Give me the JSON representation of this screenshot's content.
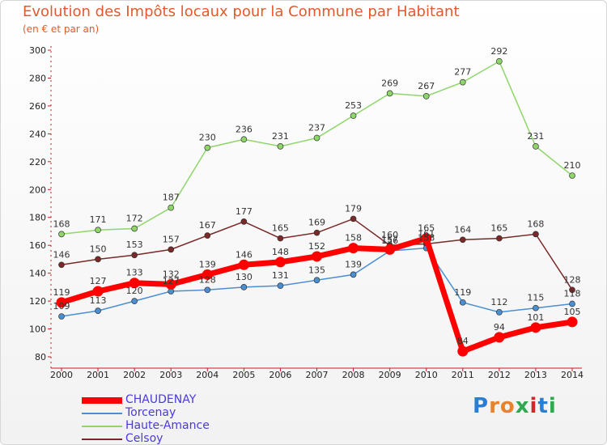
{
  "title": "Evolution des Impôts locaux pour la Commune par Habitant",
  "subtitle": "(en € et par an)",
  "logo": {
    "text": "Proxiti",
    "colors": [
      "#2a7fd4",
      "#e8832a",
      "#e8832a",
      "#2fa84f",
      "#d4252b",
      "#2a7fd4",
      "#2fa84f"
    ]
  },
  "chart_data": {
    "type": "line",
    "title": "Evolution des Impôts locaux pour la Commune par Habitant",
    "subtitle": "(en € et par an)",
    "xlabel": "",
    "ylabel": "",
    "categories": [
      "2000",
      "2001",
      "2002",
      "2003",
      "2004",
      "2005",
      "2006",
      "2007",
      "2008",
      "2009",
      "2010",
      "2011",
      "2012",
      "2013",
      "2014"
    ],
    "ylim": [
      80,
      300
    ],
    "yticks": [
      80,
      100,
      120,
      140,
      160,
      180,
      200,
      220,
      240,
      260,
      280,
      300
    ],
    "grid": false,
    "legend_position": "bottom-left",
    "series": [
      {
        "name": "Celsoy",
        "color": "#7a2828",
        "emphasis": false,
        "values": [
          146,
          150,
          153,
          157,
          167,
          177,
          165,
          169,
          179,
          160,
          161,
          164,
          165,
          168,
          128
        ]
      },
      {
        "name": "Haute-Amance",
        "color": "#8ed66a",
        "emphasis": false,
        "values": [
          168,
          171,
          172,
          187,
          230,
          236,
          231,
          237,
          253,
          269,
          267,
          277,
          292,
          231,
          210
        ]
      },
      {
        "name": "Torcenay",
        "color": "#4b8fd1",
        "emphasis": false,
        "values": [
          109,
          113,
          120,
          127,
          128,
          130,
          131,
          135,
          139,
          156,
          158,
          119,
          112,
          115,
          118
        ]
      },
      {
        "name": "CHAUDENAY",
        "color": "#ff0000",
        "emphasis": true,
        "values": [
          119,
          127,
          133,
          132,
          139,
          146,
          148,
          152,
          158,
          157,
          165,
          84,
          94,
          101,
          105
        ]
      }
    ],
    "data_labels": [
      {
        "series": "Celsoy",
        "labels": [
          "146",
          "150",
          "153",
          "157",
          "167",
          "177",
          "165",
          "169",
          "179",
          "160",
          "161",
          "164",
          "165",
          "168",
          "128"
        ]
      },
      {
        "series": "Haute-Amance",
        "labels": [
          "168",
          "171",
          "172",
          "187",
          "230",
          "236",
          "231",
          "237",
          "253",
          "269",
          "267",
          "277",
          "292",
          "231",
          "210"
        ]
      },
      {
        "series": "Torcenay",
        "labels": [
          "109",
          "113",
          "120",
          "127",
          "128",
          "130",
          "131",
          "135",
          "139",
          "156",
          "158",
          "119",
          "112",
          "115",
          "118"
        ]
      },
      {
        "series": "CHAUDENAY",
        "labels": [
          "119",
          "127",
          "133",
          "132",
          "139",
          "146",
          "148",
          "152",
          "158",
          "157",
          "165",
          "84",
          "94",
          "101",
          "105"
        ]
      }
    ]
  },
  "legend": [
    {
      "label": "CHAUDENAY",
      "color": "#ff0000"
    },
    {
      "label": "Torcenay",
      "color": "#4b8fd1"
    },
    {
      "label": "Haute-Amance",
      "color": "#8ed66a"
    },
    {
      "label": "Celsoy",
      "color": "#7a2828"
    }
  ]
}
